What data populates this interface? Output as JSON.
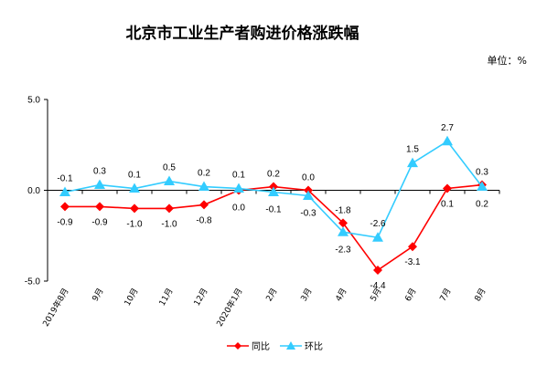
{
  "chart_data": {
    "type": "line",
    "title": "北京市工业生产者购进价格涨跌幅",
    "unit_label": "单位：%",
    "categories": [
      "2019年8月",
      "9月",
      "10月",
      "11月",
      "12月",
      "2020年1月",
      "2月",
      "3月",
      "4月",
      "5月",
      "6月",
      "7月",
      "8月"
    ],
    "ylim": [
      -5.0,
      5.0
    ],
    "yticks": [
      "5.0",
      "0.0",
      "-5.0"
    ],
    "grid": false,
    "legend_position": "bottom",
    "series": [
      {
        "name": "同比",
        "color": "#ff0000",
        "marker": "diamond",
        "values": [
          -0.9,
          -0.9,
          -1.0,
          -1.0,
          -0.8,
          0.0,
          0.2,
          0.0,
          -1.8,
          -4.4,
          -3.1,
          0.1,
          0.3
        ],
        "labels": [
          "-0.9",
          "-0.9",
          "-1.0",
          "-1.0",
          "-0.8",
          "0.0",
          "0.2",
          "0.0",
          "-1.8",
          "-4.4",
          "-3.1",
          "0.1",
          "0.3"
        ]
      },
      {
        "name": "环比",
        "color": "#33ccff",
        "marker": "triangle",
        "values": [
          -0.1,
          0.3,
          0.1,
          0.5,
          0.2,
          0.1,
          -0.1,
          -0.3,
          -2.3,
          -2.6,
          1.5,
          2.7,
          0.2
        ],
        "labels": [
          "-0.1",
          "0.3",
          "0.1",
          "0.5",
          "0.2",
          "0.1",
          "-0.1",
          "-0.3",
          "-2.3",
          "-2.6",
          "1.5",
          "2.7",
          "0.2"
        ]
      }
    ]
  }
}
